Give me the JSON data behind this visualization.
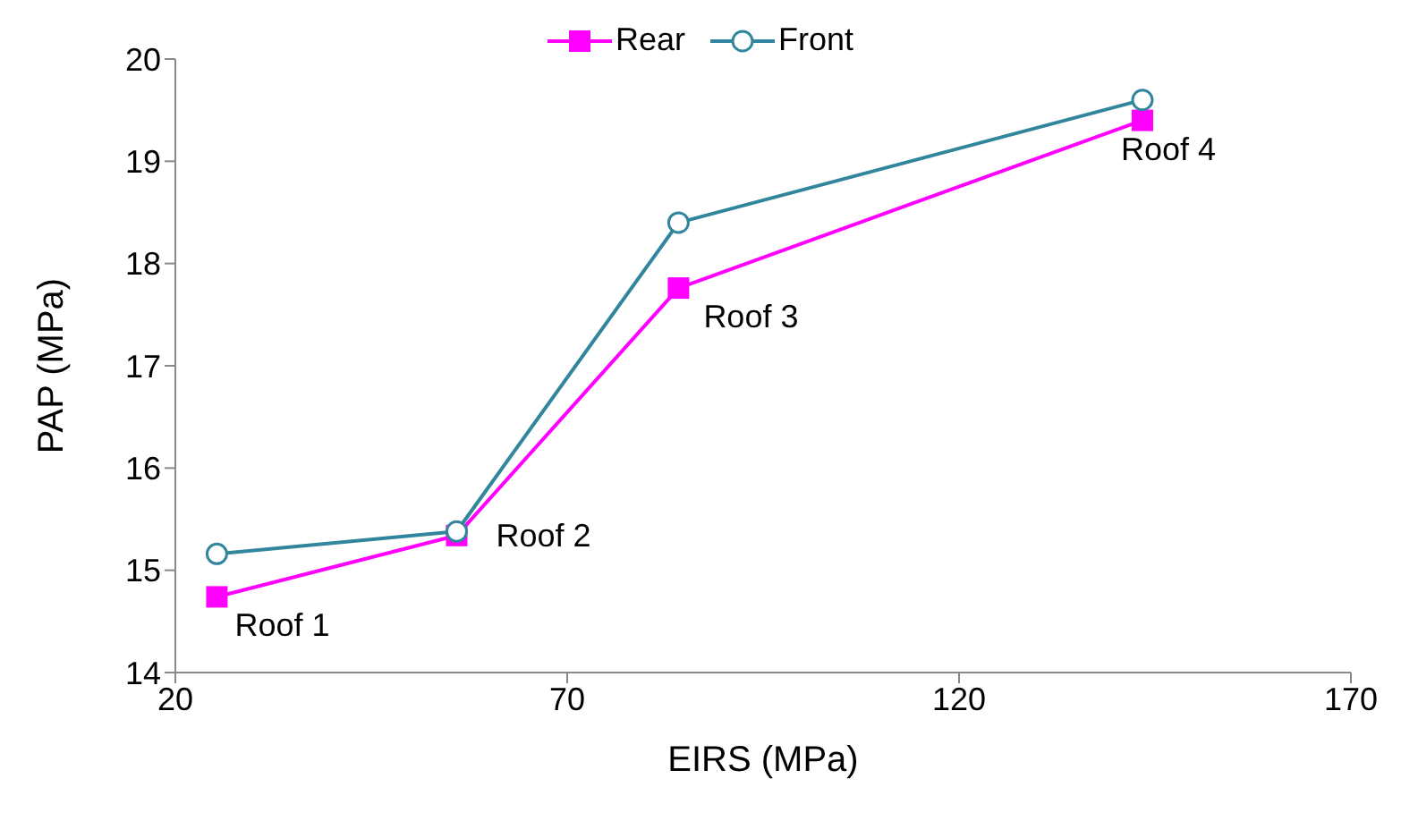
{
  "chart_data": {
    "type": "line",
    "xlabel": "EIRS (MPa)",
    "ylabel": "PAP (MPa)",
    "x": [
      25.3,
      55.9,
      84.2,
      143.4
    ],
    "series": [
      {
        "name": "Rear",
        "color": "#ff00ff",
        "marker": "square",
        "values": [
          14.74,
          15.34,
          17.76,
          19.4
        ]
      },
      {
        "name": "Front",
        "color": "#31859c",
        "marker": "circle",
        "values": [
          15.16,
          15.38,
          18.4,
          19.6
        ]
      }
    ],
    "xlim": [
      20,
      170
    ],
    "xticks": [
      20,
      70,
      120,
      170
    ],
    "ylim": [
      14,
      20
    ],
    "yticks": [
      14,
      15,
      16,
      17,
      18,
      19,
      20
    ],
    "annotations": [
      {
        "text": "Roof 1",
        "x": 25.3,
        "y": 14.74
      },
      {
        "text": "Roof 2",
        "x": 55.9,
        "y": 15.34
      },
      {
        "text": "Roof 3",
        "x": 84.2,
        "y": 17.76
      },
      {
        "text": "Roof 4",
        "x": 143.4,
        "y": 19.4
      }
    ],
    "legend": "top",
    "grid": false
  }
}
